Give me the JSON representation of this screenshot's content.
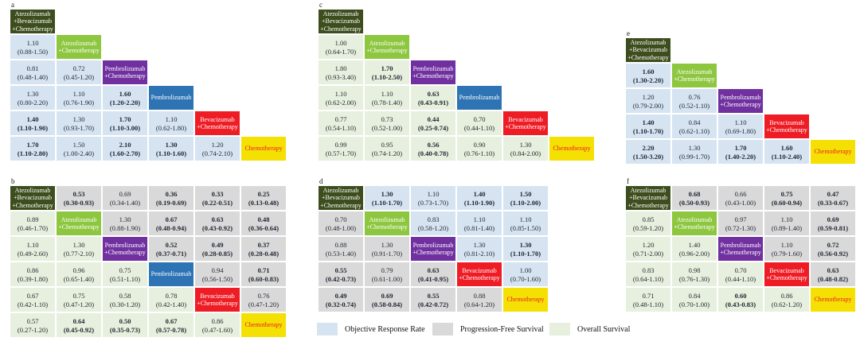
{
  "measures": {
    "orr": {
      "label": "Objective Response Rate",
      "color": "#d6e4f2"
    },
    "pfs": {
      "label": "Progression-Free Survival",
      "color": "#d9d9d9"
    },
    "os": {
      "label": "Overall Survival",
      "color": "#e7f0de"
    }
  },
  "treatments": {
    "abc": {
      "name": "Atezolizumab+Bevacizumab+Chemotherapy",
      "lines": [
        "Atezolizumab",
        "+Bevacizumab",
        "+Chemotherapy"
      ],
      "bg": "#3d4d1d",
      "fg": "#ffffff"
    },
    "ac": {
      "name": "Atezolizumab+Chemotherapy",
      "lines": [
        "Atezolizumab",
        "+Chemotherapy"
      ],
      "bg": "#8dc63f",
      "fg": "#ffffff"
    },
    "pc": {
      "name": "Pembrolizumab+Chemotherapy",
      "lines": [
        "Pembrolizumab",
        "+Chemotherapy"
      ],
      "bg": "#7030a0",
      "fg": "#ffffff"
    },
    "p": {
      "name": "Pembrolizumab",
      "lines": [
        "Pembrolizumab"
      ],
      "bg": "#2e74b5",
      "fg": "#ffffff"
    },
    "bc": {
      "name": "Bevacizumab+Chemotherapy",
      "lines": [
        "Bevacizumab",
        "+Chemotherapy"
      ],
      "bg": "#ee1c24",
      "fg": "#ffffff"
    },
    "c": {
      "name": "Chemotherapy",
      "lines": [
        "Chemotherapy"
      ],
      "bg": "#f5e003",
      "fg": "#ee1c24"
    }
  },
  "legend": {
    "items": [
      {
        "measure": "orr"
      },
      {
        "measure": "pfs"
      },
      {
        "measure": "os"
      }
    ]
  },
  "chart_data": {
    "type": "table",
    "description": "Network meta-analysis league tables (panels a-f): estimates with 95% CI; bold = statistically significant. Diagonal shows treatments; cell color encodes outcome measure per legend.",
    "panels": [
      {
        "id": "a",
        "order": [
          "abc",
          "ac",
          "pc",
          "p",
          "bc",
          "c"
        ],
        "lower": "orr",
        "upper": null,
        "lower_cells": [
          [
            {
              "v": "1.10",
              "ci": "(0.88-1.50)",
              "sig": false
            }
          ],
          [
            {
              "v": "0.81",
              "ci": "(0.48-1.40)",
              "sig": false
            },
            {
              "v": "0.72",
              "ci": "(0.45-1.20)",
              "sig": false
            }
          ],
          [
            {
              "v": "1.30",
              "ci": "(0.80-2.20)",
              "sig": false
            },
            {
              "v": "1.10",
              "ci": "(0.76-1.90)",
              "sig": false
            },
            {
              "v": "1.60",
              "ci": "(1.20-2.20)",
              "sig": true
            }
          ],
          [
            {
              "v": "1.40",
              "ci": "(1.10-1.90)",
              "sig": true
            },
            {
              "v": "1.30",
              "ci": "(0.93-1.70)",
              "sig": false
            },
            {
              "v": "1.70",
              "ci": "(1.10-3.00)",
              "sig": true
            },
            {
              "v": "1.10",
              "ci": "(0.62-1.80)",
              "sig": false
            }
          ],
          [
            {
              "v": "1.70",
              "ci": "(1.10-2.80)",
              "sig": true
            },
            {
              "v": "1.50",
              "ci": "(1.00-2.40)",
              "sig": false
            },
            {
              "v": "2.10",
              "ci": "(1.60-2.70)",
              "sig": true
            },
            {
              "v": "1.30",
              "ci": "(1.10-1.60)",
              "sig": true
            },
            {
              "v": "1.20",
              "ci": "(0.74-2.10)",
              "sig": false
            }
          ]
        ],
        "upper_cells": null
      },
      {
        "id": "b",
        "order": [
          "abc",
          "ac",
          "pc",
          "p",
          "bc",
          "c"
        ],
        "lower": "os",
        "upper": "pfs",
        "upper_cells": [
          [
            {
              "v": "0.53",
              "ci": "(0.30-0.93)",
              "sig": true
            },
            {
              "v": "0.69",
              "ci": "(0.34-1.40)",
              "sig": false
            },
            {
              "v": "0.36",
              "ci": "(0.19-0.69)",
              "sig": true
            },
            {
              "v": "0.33",
              "ci": "(0.22-0.51)",
              "sig": true
            },
            {
              "v": "0.25",
              "ci": "(0.13-0.48)",
              "sig": true
            }
          ],
          [
            {
              "v": "1.30",
              "ci": "(0.88-1.90)",
              "sig": false
            },
            {
              "v": "0.67",
              "ci": "(0.48-0.94)",
              "sig": true
            },
            {
              "v": "0.63",
              "ci": "(0.43-0.92)",
              "sig": true
            },
            {
              "v": "0.48",
              "ci": "(0.36-0.64)",
              "sig": true
            }
          ],
          [
            {
              "v": "0.52",
              "ci": "(0.37-0.71)",
              "sig": true
            },
            {
              "v": "0.49",
              "ci": "(0.28-0.85)",
              "sig": true
            },
            {
              "v": "0.37",
              "ci": "(0.28-0.48)",
              "sig": true
            }
          ],
          [
            {
              "v": "0.94",
              "ci": "(0.56-1.50)",
              "sig": false
            },
            {
              "v": "0.71",
              "ci": "(0.60-0.83)",
              "sig": true
            }
          ],
          [
            {
              "v": "0.76",
              "ci": "(0.47-1.20)",
              "sig": false
            }
          ]
        ],
        "lower_cells": [
          [
            {
              "v": "0.89",
              "ci": "(0.46-1.70)",
              "sig": false
            }
          ],
          [
            {
              "v": "1.10",
              "ci": "(0.49-2.60)",
              "sig": false
            },
            {
              "v": "1.30",
              "ci": "(0.77-2.10)",
              "sig": false
            }
          ],
          [
            {
              "v": "0.86",
              "ci": "(0.39-1.80)",
              "sig": false
            },
            {
              "v": "0.96",
              "ci": "(0.65-1.40)",
              "sig": false
            },
            {
              "v": "0.75",
              "ci": "(0.51-1.10)",
              "sig": false
            }
          ],
          [
            {
              "v": "0.67",
              "ci": "(0.42-1.10)",
              "sig": false
            },
            {
              "v": "0.75",
              "ci": "(0.47-1.20)",
              "sig": false
            },
            {
              "v": "0.58",
              "ci": "(0.30-1.20)",
              "sig": false
            },
            {
              "v": "0.78",
              "ci": "(0.42-1.40)",
              "sig": false
            }
          ],
          [
            {
              "v": "0.57",
              "ci": "(0.27-1.20)",
              "sig": false
            },
            {
              "v": "0.64",
              "ci": "(0.45-0.92)",
              "sig": true
            },
            {
              "v": "0.50",
              "ci": "(0.35-0.73)",
              "sig": true
            },
            {
              "v": "0.67",
              "ci": "(0.57-0.78)",
              "sig": true
            },
            {
              "v": "0.86",
              "ci": "(0.47-1.60)",
              "sig": false
            }
          ]
        ]
      },
      {
        "id": "c",
        "order": [
          "abc",
          "ac",
          "pc",
          "p",
          "bc",
          "c"
        ],
        "lower": "os",
        "upper": null,
        "lower_cells": [
          [
            {
              "v": "1.00",
              "ci": "(0.64-1.70)",
              "sig": false
            }
          ],
          [
            {
              "v": "1.80",
              "ci": "(0.93-3.40)",
              "sig": false
            },
            {
              "v": "1.70",
              "ci": "(1.10-2.50)",
              "sig": true
            }
          ],
          [
            {
              "v": "1.10",
              "ci": "(0.62-2.00)",
              "sig": false
            },
            {
              "v": "1.10",
              "ci": "(0.78-1.40)",
              "sig": false
            },
            {
              "v": "0.63",
              "ci": "(0.43-0.91)",
              "sig": true
            }
          ],
          [
            {
              "v": "0.77",
              "ci": "(0.54-1.10)",
              "sig": false
            },
            {
              "v": "0.73",
              "ci": "(0.52-1.00)",
              "sig": false
            },
            {
              "v": "0.44",
              "ci": "(0.25-0.74)",
              "sig": true
            },
            {
              "v": "0.70",
              "ci": "(0.44-1.10)",
              "sig": false
            }
          ],
          [
            {
              "v": "0.99",
              "ci": "(0.57-1.70)",
              "sig": false
            },
            {
              "v": "0.95",
              "ci": "(0.74-1.20)",
              "sig": false
            },
            {
              "v": "0.56",
              "ci": "(0.40-0.78)",
              "sig": true
            },
            {
              "v": "0.90",
              "ci": "(0.76-1.10)",
              "sig": false
            },
            {
              "v": "1.30",
              "ci": "(0.84-2.00)",
              "sig": false
            }
          ]
        ],
        "upper_cells": null
      },
      {
        "id": "d",
        "order": [
          "abc",
          "ac",
          "pc",
          "bc",
          "c"
        ],
        "lower": "pfs",
        "upper": "orr",
        "upper_cells": [
          [
            {
              "v": "1.30",
              "ci": "(1.10-1.70)",
              "sig": true
            },
            {
              "v": "1.10",
              "ci": "(0.73-1.70)",
              "sig": false
            },
            {
              "v": "1.40",
              "ci": "(1.10-1.90)",
              "sig": true
            },
            {
              "v": "1.50",
              "ci": "(1.10-2.00)",
              "sig": true
            }
          ],
          [
            {
              "v": "0.83",
              "ci": "(0.58-1.20)",
              "sig": false
            },
            {
              "v": "1.10",
              "ci": "(0.81-1.40)",
              "sig": false
            },
            {
              "v": "1.10",
              "ci": "(0.85-1.50)",
              "sig": false
            }
          ],
          [
            {
              "v": "1.30",
              "ci": "(0.81-2.10)",
              "sig": false
            },
            {
              "v": "1.30",
              "ci": "(1.10-1.70)",
              "sig": true
            }
          ],
          [
            {
              "v": "1.00",
              "ci": "(0.70-1.60)",
              "sig": false
            }
          ]
        ],
        "lower_cells": [
          [
            {
              "v": "0.70",
              "ci": "(0.48-1.00)",
              "sig": false
            }
          ],
          [
            {
              "v": "0.88",
              "ci": "(0.53-1.40)",
              "sig": false
            },
            {
              "v": "1.30",
              "ci": "(0.91-1.70)",
              "sig": false
            }
          ],
          [
            {
              "v": "0.55",
              "ci": "(0.42-0.73)",
              "sig": true
            },
            {
              "v": "0.79",
              "ci": "(0.61-1.00)",
              "sig": false
            },
            {
              "v": "0.63",
              "ci": "(0.41-0.95)",
              "sig": true
            }
          ],
          [
            {
              "v": "0.49",
              "ci": "(0.32-0.74)",
              "sig": true
            },
            {
              "v": "0.69",
              "ci": "(0.58-0.84)",
              "sig": true
            },
            {
              "v": "0.55",
              "ci": "(0.42-0.72)",
              "sig": true
            },
            {
              "v": "0.88",
              "ci": "(0.64-1.20)",
              "sig": false
            }
          ]
        ]
      },
      {
        "id": "e",
        "order": [
          "abc",
          "ac",
          "pc",
          "bc",
          "c"
        ],
        "lower": "orr",
        "upper": null,
        "lower_cells": [
          [
            {
              "v": "1.60",
              "ci": "(1.30-2.20)",
              "sig": true
            }
          ],
          [
            {
              "v": "1.20",
              "ci": "(0.79-2.00)",
              "sig": false
            },
            {
              "v": "0.76",
              "ci": "(0.52-1.10)",
              "sig": false
            }
          ],
          [
            {
              "v": "1.40",
              "ci": "(1.10-1.70)",
              "sig": true
            },
            {
              "v": "0.84",
              "ci": "(0.62-1.10)",
              "sig": false
            },
            {
              "v": "1.10",
              "ci": "(0.69-1.80)",
              "sig": false
            }
          ],
          [
            {
              "v": "2.20",
              "ci": "(1.50-3.20)",
              "sig": true
            },
            {
              "v": "1.30",
              "ci": "(0.99-1.70)",
              "sig": false
            },
            {
              "v": "1.70",
              "ci": "(1.40-2.20)",
              "sig": true
            },
            {
              "v": "1.60",
              "ci": "(1.10-2.40)",
              "sig": true
            }
          ]
        ],
        "upper_cells": null
      },
      {
        "id": "f",
        "order": [
          "abc",
          "ac",
          "pc",
          "bc",
          "c"
        ],
        "lower": "os",
        "upper": "pfs",
        "upper_cells": [
          [
            {
              "v": "0.68",
              "ci": "(0.50-0.93)",
              "sig": true
            },
            {
              "v": "0.66",
              "ci": "(0.43-1.00)",
              "sig": false
            },
            {
              "v": "0.75",
              "ci": "(0.60-0.94)",
              "sig": true
            },
            {
              "v": "0.47",
              "ci": "(0.33-0.67)",
              "sig": true
            }
          ],
          [
            {
              "v": "0.97",
              "ci": "(0.72-1.30)",
              "sig": false
            },
            {
              "v": "1.10",
              "ci": "(0.89-1.40)",
              "sig": false
            },
            {
              "v": "0.69",
              "ci": "(0.59-0.81)",
              "sig": true
            }
          ],
          [
            {
              "v": "1.10",
              "ci": "(0.79-1.60)",
              "sig": false
            },
            {
              "v": "0.72",
              "ci": "(0.56-0.92)",
              "sig": true
            }
          ],
          [
            {
              "v": "0.63",
              "ci": "(0.48-0.82)",
              "sig": true
            }
          ]
        ],
        "lower_cells": [
          [
            {
              "v": "0.85",
              "ci": "(0.59-1.20)",
              "sig": false
            }
          ],
          [
            {
              "v": "1.20",
              "ci": "(0.71-2.00)",
              "sig": false
            },
            {
              "v": "1.40",
              "ci": "(0.96-2.00)",
              "sig": false
            }
          ],
          [
            {
              "v": "0.83",
              "ci": "(0.64-1.10)",
              "sig": false
            },
            {
              "v": "0.98",
              "ci": "(0.76-1.30)",
              "sig": false
            },
            {
              "v": "0.70",
              "ci": "(0.44-1.10)",
              "sig": false
            }
          ],
          [
            {
              "v": "0.71",
              "ci": "(0.48-1.10)",
              "sig": false
            },
            {
              "v": "0.84",
              "ci": "(0.70-1.00)",
              "sig": false
            },
            {
              "v": "0.60",
              "ci": "(0.43-0.83)",
              "sig": true
            },
            {
              "v": "0.86",
              "ci": "(0.62-1.20)",
              "sig": false
            }
          ]
        ]
      }
    ]
  }
}
